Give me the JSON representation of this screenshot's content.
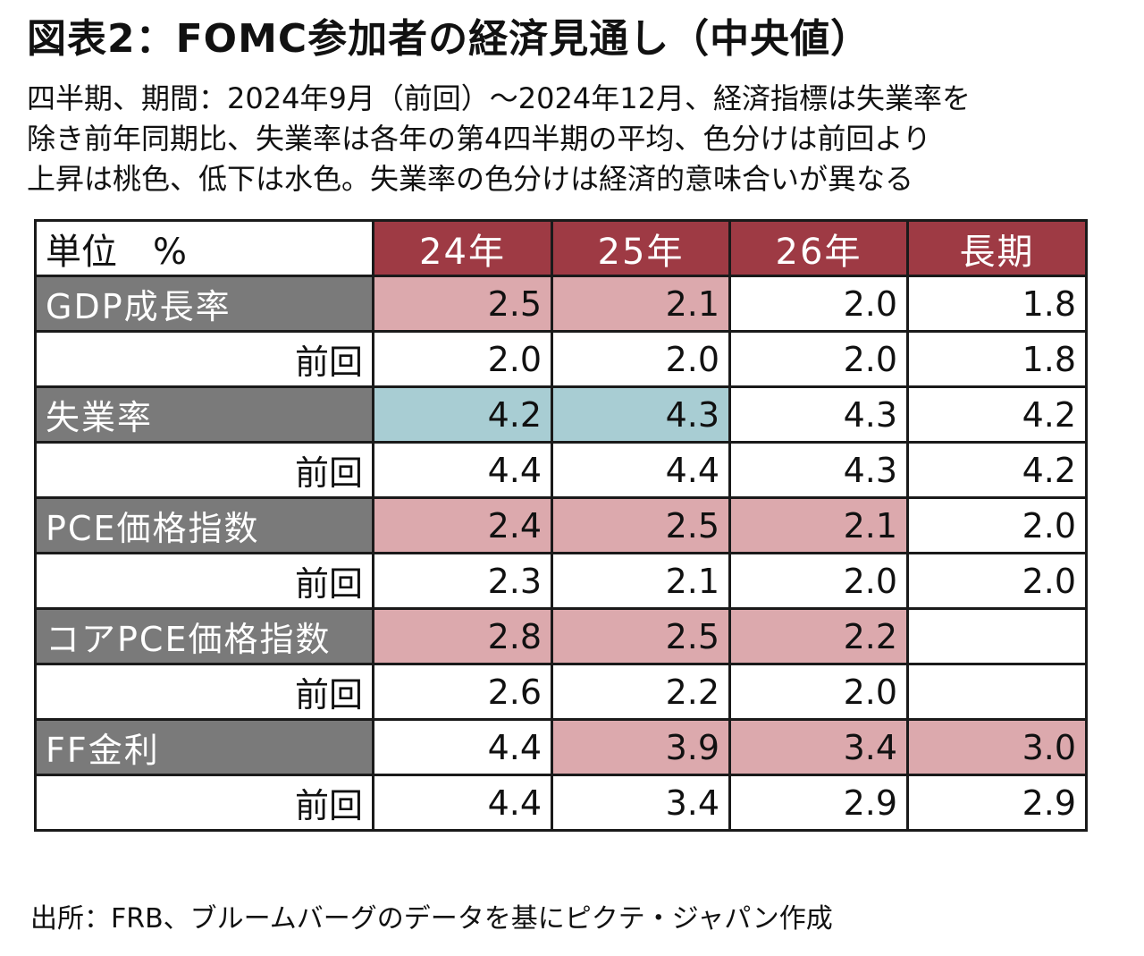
{
  "title": "図表2：FOMC参加者の経済見通し（中央値）",
  "subtitle_lines": [
    "四半期、期間：2024年9月（前回）～2024年12月、経済指標は失業率を",
    "除き前年同期比、失業率は各年の第4四半期の平均、色分けは前回より",
    "上昇は桃色、低下は水色。失業率の色分けは経済的意味合いが異なる"
  ],
  "source": "出所：FRB、ブルームバーグのデータを基にピクテ・ジャパン作成",
  "colors": {
    "header": "#9e3a44",
    "label": "#7a7a7a",
    "up": "#dca9ad",
    "down": "#a8cdd3"
  },
  "chart_data": {
    "type": "table",
    "corner": "単位　%",
    "columns": [
      "24年",
      "25年",
      "26年",
      "長期"
    ],
    "prev_label": "前回",
    "rows": [
      {
        "name": "GDP成長率",
        "values": [
          "2.5",
          "2.1",
          "2.0",
          "1.8"
        ],
        "prev": [
          "2.0",
          "2.0",
          "2.0",
          "1.8"
        ],
        "change": [
          "up",
          "up",
          "",
          ""
        ]
      },
      {
        "name": "失業率",
        "values": [
          "4.2",
          "4.3",
          "4.3",
          "4.2"
        ],
        "prev": [
          "4.4",
          "4.4",
          "4.3",
          "4.2"
        ],
        "change": [
          "down",
          "down",
          "",
          ""
        ]
      },
      {
        "name": "PCE価格指数",
        "values": [
          "2.4",
          "2.5",
          "2.1",
          "2.0"
        ],
        "prev": [
          "2.3",
          "2.1",
          "2.0",
          "2.0"
        ],
        "change": [
          "up",
          "up",
          "up",
          ""
        ]
      },
      {
        "name": "コアPCE価格指数",
        "values": [
          "2.8",
          "2.5",
          "2.2",
          ""
        ],
        "prev": [
          "2.6",
          "2.2",
          "2.0",
          ""
        ],
        "change": [
          "up",
          "up",
          "up",
          ""
        ]
      },
      {
        "name": "FF金利",
        "values": [
          "4.4",
          "3.9",
          "3.4",
          "3.0"
        ],
        "prev": [
          "4.4",
          "3.4",
          "2.9",
          "2.9"
        ],
        "change": [
          "",
          "up",
          "up",
          "up"
        ]
      }
    ]
  }
}
